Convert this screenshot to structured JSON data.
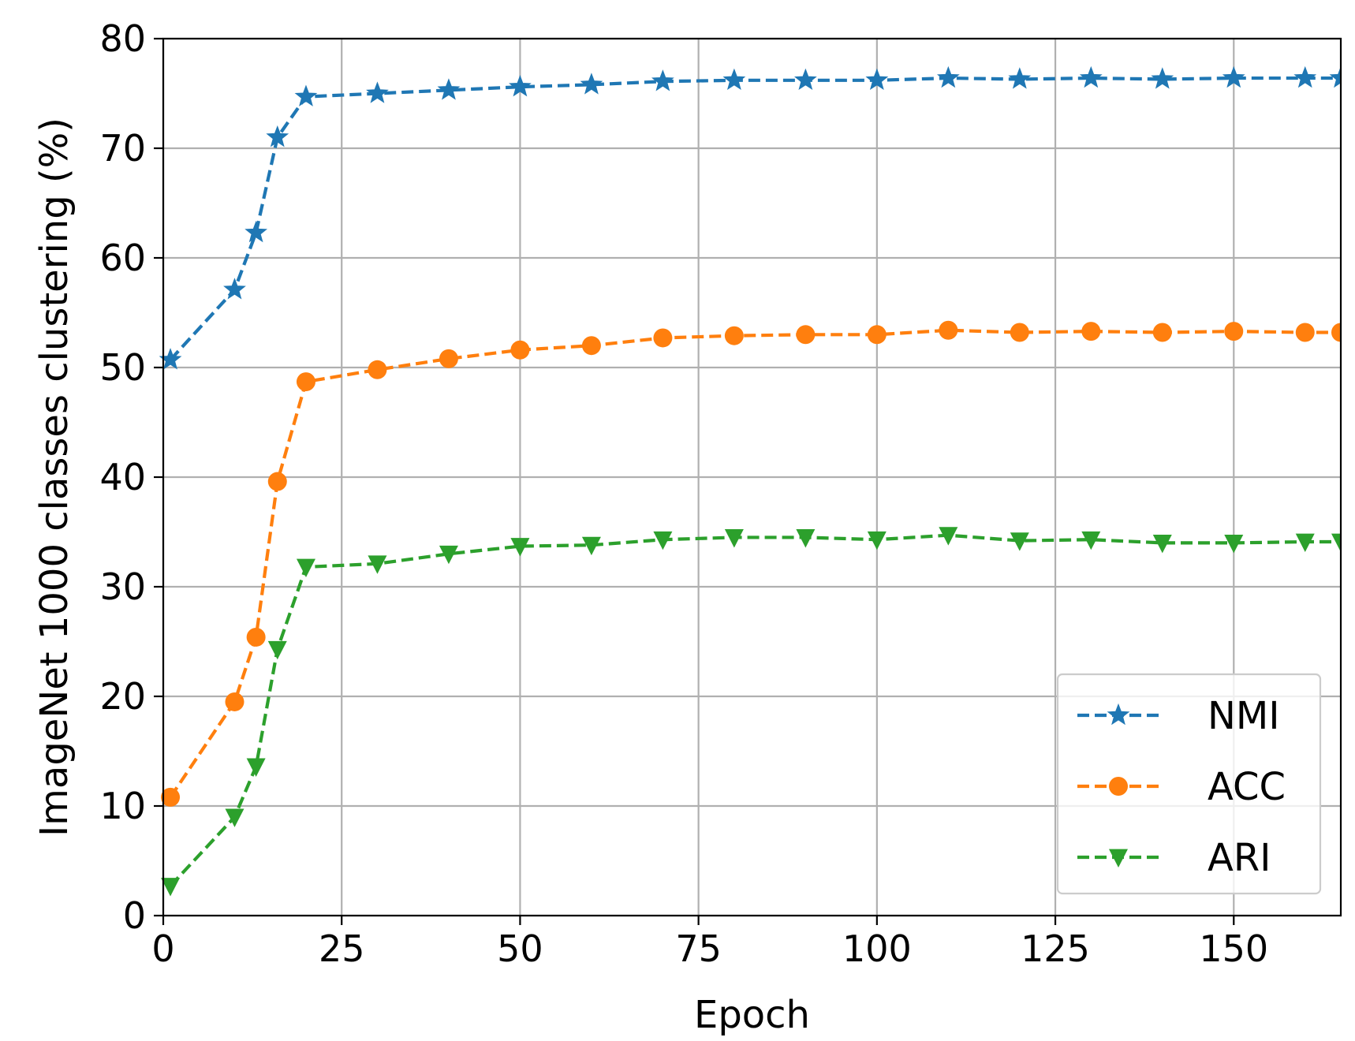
{
  "chart_data": {
    "type": "line",
    "title": "",
    "xlabel": "Epoch",
    "ylabel": "ImageNet 1000 classes clustering (%)",
    "xlim": [
      0,
      165
    ],
    "ylim": [
      0,
      80
    ],
    "xticks": [
      0,
      25,
      50,
      75,
      100,
      125,
      150
    ],
    "yticks": [
      0,
      10,
      20,
      30,
      40,
      50,
      60,
      70,
      80
    ],
    "grid": true,
    "legend_position": "lower-right",
    "x": [
      1,
      10,
      13,
      16,
      20,
      30,
      40,
      50,
      60,
      70,
      80,
      90,
      100,
      110,
      120,
      130,
      140,
      150,
      160,
      165
    ],
    "series": [
      {
        "name": "NMI",
        "color": "#1f77b4",
        "marker": "star",
        "line_style": "dashed",
        "values": [
          50.7,
          57.1,
          62.3,
          71.0,
          74.7,
          75.0,
          75.3,
          75.6,
          75.8,
          76.1,
          76.2,
          76.2,
          76.2,
          76.4,
          76.3,
          76.4,
          76.3,
          76.4,
          76.4,
          76.4
        ]
      },
      {
        "name": "ACC",
        "color": "#ff7f0e",
        "marker": "circle",
        "line_style": "dashed",
        "values": [
          10.8,
          19.5,
          25.4,
          39.6,
          48.7,
          49.8,
          50.8,
          51.6,
          52.0,
          52.7,
          52.9,
          53.0,
          53.0,
          53.4,
          53.2,
          53.3,
          53.2,
          53.3,
          53.2,
          53.2
        ]
      },
      {
        "name": "ARI",
        "color": "#2ca02c",
        "marker": "triangle-down",
        "line_style": "dashed",
        "values": [
          2.7,
          9.0,
          13.6,
          24.3,
          31.8,
          32.1,
          33.0,
          33.7,
          33.8,
          34.3,
          34.5,
          34.5,
          34.3,
          34.7,
          34.2,
          34.3,
          34.0,
          34.0,
          34.1,
          34.1
        ]
      }
    ]
  }
}
